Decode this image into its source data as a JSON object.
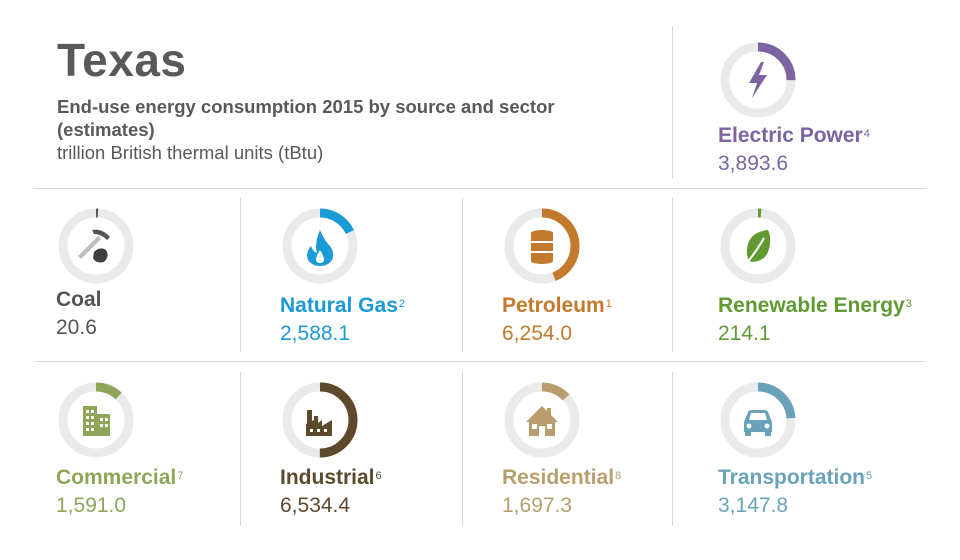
{
  "header": {
    "state": "Texas",
    "subtitle": "End-use energy consumption 2015 by source and sector (estimates)",
    "units": "trillion British thermal units (tBtu)"
  },
  "tiles": {
    "electric": {
      "label": "Electric Power",
      "note": "4",
      "value": "3,893.6",
      "color": "#7b64a1",
      "share": 0.25,
      "icon": "lightning-bolt-icon"
    },
    "coal": {
      "label": "Coal",
      "note": "",
      "value": "20.6",
      "color": "#555555",
      "share": 0.005,
      "icon": "pickaxe-coal-icon"
    },
    "gas": {
      "label": "Natural Gas",
      "note": "2",
      "value": "2,588.1",
      "color": "#1a9ad6",
      "share": 0.18,
      "icon": "flame-icon"
    },
    "petroleum": {
      "label": "Petroleum",
      "note": "1",
      "value": "6,254.0",
      "color": "#c47a2c",
      "share": 0.44,
      "icon": "oil-barrel-icon"
    },
    "renewable": {
      "label": "Renewable Energy",
      "note": "3",
      "value": "214.1",
      "color": "#5f9b32",
      "share": 0.015,
      "icon": "leaf-icon"
    },
    "commercial": {
      "label": "Commercial",
      "note": "7",
      "value": "1,591.0",
      "color": "#8fa659",
      "share": 0.12,
      "icon": "office-building-icon"
    },
    "industrial": {
      "label": "Industrial",
      "note": "6",
      "value": "6,534.4",
      "color": "#5d4a2d",
      "share": 0.5,
      "icon": "factory-icon"
    },
    "residential": {
      "label": "Residential",
      "note": "8",
      "value": "1,697.3",
      "color": "#b89e6c",
      "share": 0.13,
      "icon": "house-icon"
    },
    "transportation": {
      "label": "Transportation",
      "note": "5",
      "value": "3,147.8",
      "color": "#6aa3b9",
      "share": 0.24,
      "icon": "car-icon"
    }
  }
}
